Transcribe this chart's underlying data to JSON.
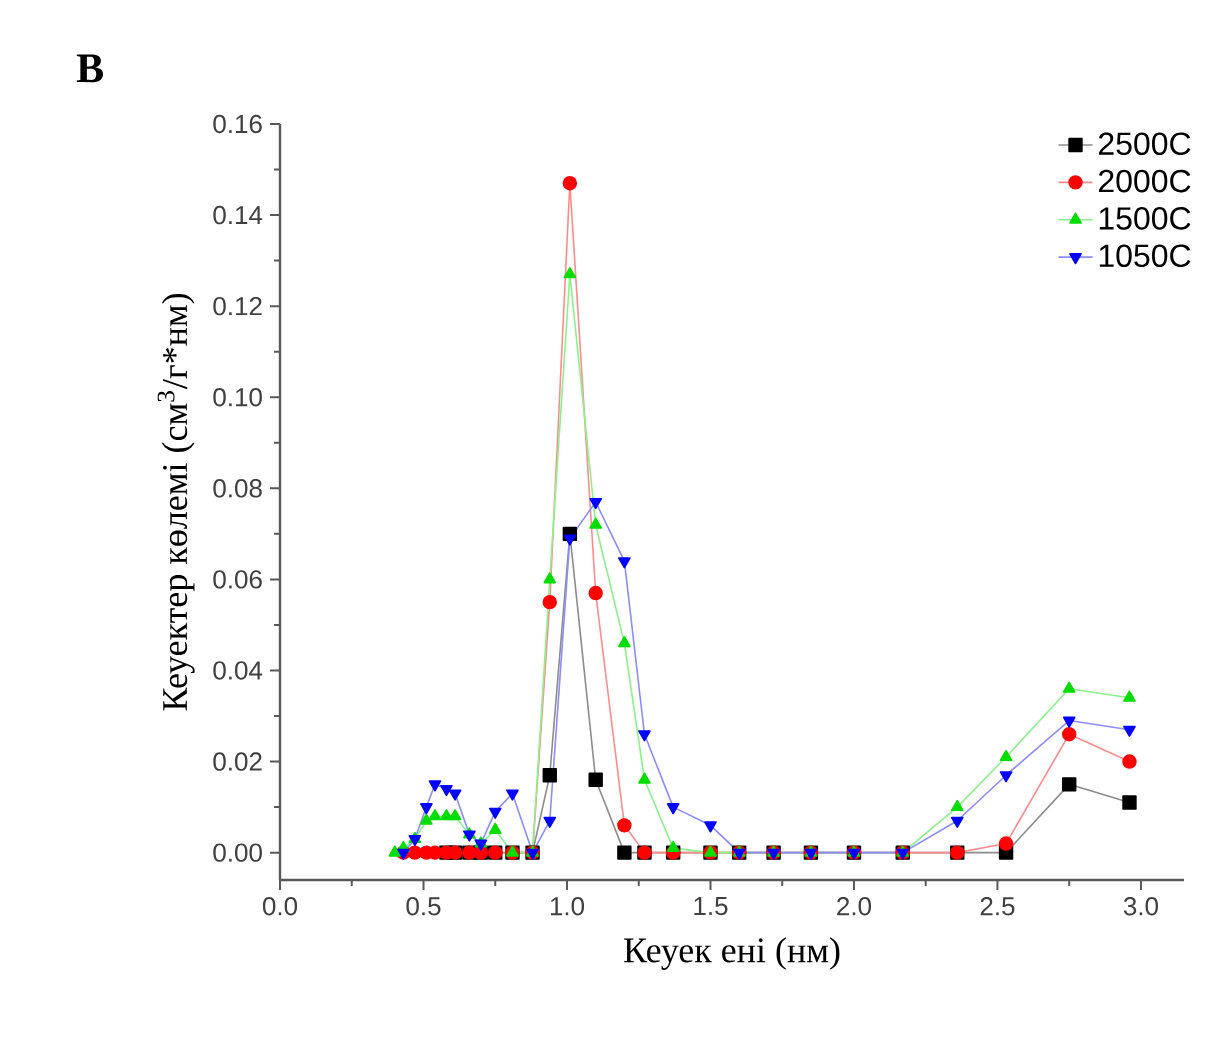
{
  "chart_data": {
    "type": "line",
    "title": "B",
    "xlabel": "Кеуек ені (нм)",
    "ylabel": "Кеуектер көлемі (см$^{3}$/г*нм)",
    "x": [
      0.4,
      0.43,
      0.47,
      0.51,
      0.54,
      0.58,
      0.61,
      0.66,
      0.7,
      0.75,
      0.81,
      0.88,
      0.94,
      1.01,
      1.1,
      1.2,
      1.27,
      1.37,
      1.5,
      1.6,
      1.72,
      1.85,
      2.0,
      2.17,
      2.36,
      2.53,
      2.75,
      2.96
    ],
    "series": [
      {
        "name": "2500C",
        "color": "#000000",
        "marker": "square",
        "values": [
          null,
          null,
          null,
          null,
          null,
          0,
          0,
          0,
          0,
          0,
          0,
          0,
          0.017,
          0.07,
          0.016,
          0,
          0,
          0,
          0,
          0,
          0,
          0,
          0,
          0,
          0,
          0,
          0.015,
          0.011
        ]
      },
      {
        "name": "2000C",
        "color": "#ff0000",
        "marker": "circle",
        "values": [
          null,
          0,
          0,
          0,
          0,
          0,
          0,
          0,
          0,
          0,
          0,
          0,
          0.055,
          0.147,
          0.057,
          0.006,
          0,
          0,
          0,
          0,
          0,
          0,
          0,
          0,
          0,
          0.002,
          0.026,
          0.02
        ]
      },
      {
        "name": "1500C",
        "color": "#00dd00",
        "marker": "triangle",
        "values": [
          0,
          0.001,
          0.003,
          0.007,
          0.008,
          0.008,
          0.008,
          0.004,
          0.002,
          0.005,
          0,
          0,
          0.06,
          0.127,
          0.072,
          0.046,
          0.016,
          0.001,
          0,
          0,
          0,
          0,
          0,
          0,
          0.01,
          0.021,
          0.036,
          0.034
        ]
      },
      {
        "name": "1050C",
        "color": "#0000ff",
        "marker": "triangle-down",
        "values": [
          null,
          0,
          0.003,
          0.01,
          0.015,
          0.014,
          0.013,
          0.004,
          0.002,
          0.009,
          0.013,
          0,
          0.007,
          0.069,
          0.077,
          0.064,
          0.026,
          0.01,
          0.006,
          0,
          0,
          0,
          0,
          0,
          0.007,
          0.017,
          0.029,
          0.027
        ]
      }
    ],
    "xlim": [
      0,
      3.15
    ],
    "ylim": [
      -0.006,
      0.16
    ],
    "xticks": [
      {
        "value": 0,
        "label": "0.0"
      },
      {
        "value": 0.5,
        "label": "0.5"
      },
      {
        "value": 1,
        "label": "1.0"
      },
      {
        "value": 1.5,
        "label": "1.5"
      },
      {
        "value": 2,
        "label": "2.0"
      },
      {
        "value": 2.5,
        "label": "2.5"
      },
      {
        "value": 3,
        "label": "3.0"
      }
    ],
    "yticks": [
      {
        "value": 0,
        "label": "0.00"
      },
      {
        "value": 0.02,
        "label": "0.02"
      },
      {
        "value": 0.04,
        "label": "0.04"
      },
      {
        "value": 0.06,
        "label": "0.06"
      },
      {
        "value": 0.08,
        "label": "0.08"
      },
      {
        "value": 0.1,
        "label": "0.10"
      },
      {
        "value": 0.12,
        "label": "0.12"
      },
      {
        "value": 0.14,
        "label": "0.14"
      },
      {
        "value": 0.16,
        "label": "0.16"
      }
    ],
    "legend": "top right"
  }
}
